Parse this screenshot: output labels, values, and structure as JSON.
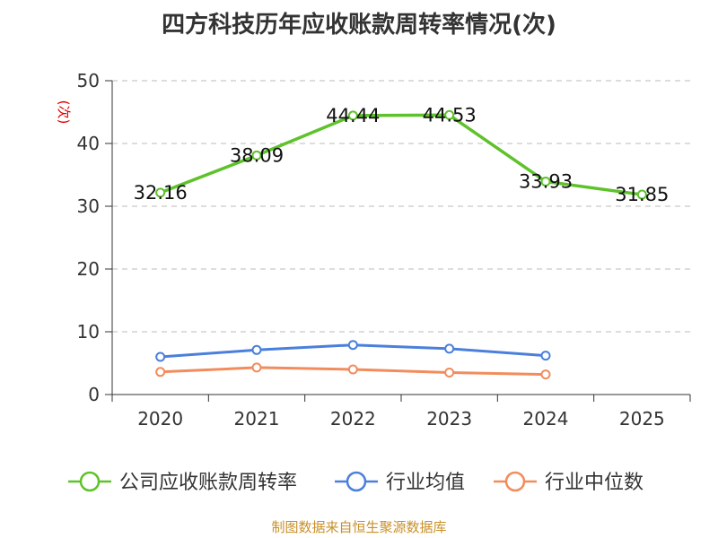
{
  "chart_data": {
    "type": "line",
    "title": "四方科技历年应收账款周转率情况(次)",
    "ylabel": "(次)",
    "xlabel": "",
    "categories": [
      "2020",
      "2021",
      "2022",
      "2023",
      "2024",
      "2025"
    ],
    "ylim": [
      0,
      50
    ],
    "yticks": [
      0,
      10,
      20,
      30,
      40,
      50
    ],
    "grid": "horizontal dashed",
    "legend_position": "bottom",
    "series": [
      {
        "name": "公司应收账款周转率",
        "color": "#5ec22b",
        "values": [
          32.16,
          38.09,
          44.44,
          44.53,
          33.93,
          31.85
        ],
        "labels": [
          "32.16",
          "38.09",
          "44.44",
          "44.53",
          "33.93",
          "31.85"
        ]
      },
      {
        "name": "行业均值",
        "color": "#4a7fdc",
        "values": [
          6.0,
          7.1,
          7.9,
          7.3,
          6.2,
          null
        ]
      },
      {
        "name": "行业中位数",
        "color": "#f28c5c",
        "values": [
          3.6,
          4.3,
          4.0,
          3.5,
          3.2,
          null
        ]
      }
    ],
    "source": "制图数据来自恒生聚源数据库"
  }
}
